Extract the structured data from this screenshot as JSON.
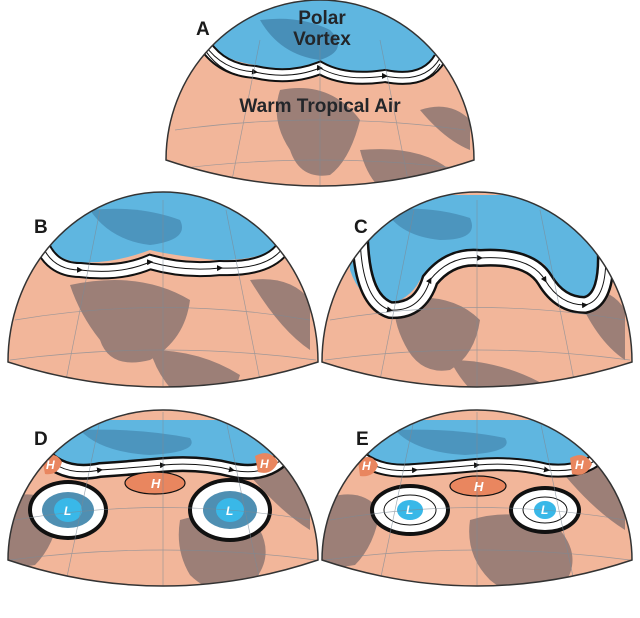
{
  "panels": [
    {
      "letter": "A",
      "labels": [
        "Polar",
        "Vortex",
        "Warm Tropical Air"
      ]
    },
    {
      "letter": "B",
      "labels": []
    },
    {
      "letter": "C",
      "labels": []
    },
    {
      "letter": "D",
      "labels": [
        "H",
        "H",
        "H",
        "L",
        "L"
      ]
    },
    {
      "letter": "E",
      "labels": [
        "H",
        "H",
        "H",
        "L",
        "L"
      ]
    }
  ],
  "colors": {
    "warm": "#f2b69a",
    "cold": "#5fb6e0",
    "land": "#9c7f77",
    "land_cold": "#3f7fa6",
    "jet": "#ffffff",
    "jet_line": "#111111",
    "high_fill": "#e9865f",
    "low_fill": "#39b8e8"
  }
}
